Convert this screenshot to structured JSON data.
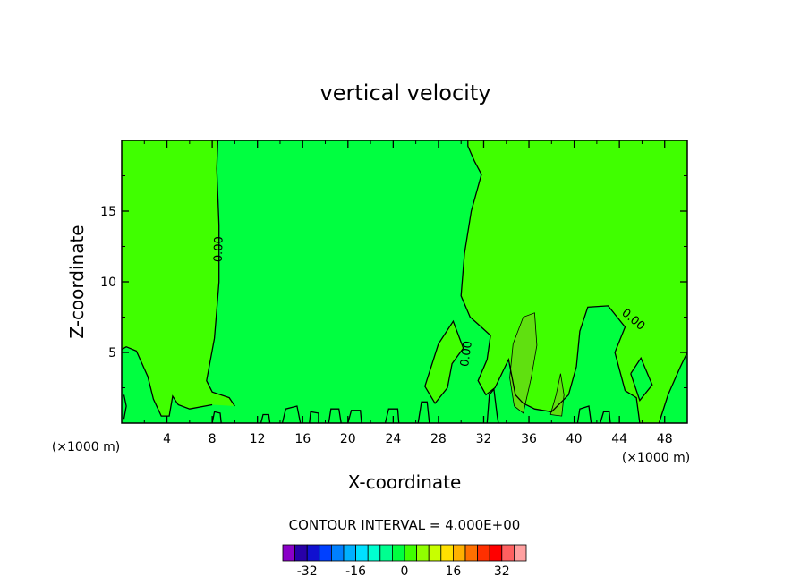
{
  "chart_data": {
    "type": "heatmap",
    "title": "vertical velocity",
    "xlabel": "X-coordinate",
    "ylabel": "Z-coordinate",
    "x_unit": "(×1000 m)",
    "y_unit": "(×1000 m)",
    "xlim": [
      0,
      50
    ],
    "ylim": [
      0,
      20
    ],
    "x_ticks": [
      4,
      8,
      12,
      16,
      20,
      24,
      28,
      32,
      36,
      40,
      44,
      48
    ],
    "y_ticks": [
      5,
      10,
      15
    ],
    "contour_labels": [
      {
        "text": "0.00",
        "x": 8.6,
        "y": 12.3,
        "rotate": -88
      },
      {
        "text": "0.00",
        "x": 30.5,
        "y": 4.9,
        "rotate": -82
      },
      {
        "text": "0.00",
        "x": 45.2,
        "y": 7.3,
        "rotate": 40
      }
    ],
    "contour_interval_text": "CONTOUR INTERVAL = 4.000E+00",
    "colorbar": {
      "colors": [
        "#8a00c8",
        "#2800a8",
        "#1010d0",
        "#0040ff",
        "#0080ff",
        "#00b0ff",
        "#00e0ff",
        "#00ffd0",
        "#00ff90",
        "#00ff40",
        "#40ff00",
        "#90ff00",
        "#c8ff00",
        "#ffe000",
        "#ffb000",
        "#ff7000",
        "#ff3000",
        "#ff0000",
        "#ff6060",
        "#ffa0a0"
      ],
      "labels": [
        {
          "text": "-32",
          "index": 2
        },
        {
          "text": "-16",
          "index": 6
        },
        {
          "text": "0",
          "index": 10
        },
        {
          "text": "16",
          "index": 14
        },
        {
          "text": "32",
          "index": 18
        }
      ]
    },
    "colors": {
      "near_zero_positive": "#40ff00",
      "near_zero_negative": "#00ff40",
      "weak_updraft": "#60e010"
    },
    "regions": [
      {
        "name": "updraft-left",
        "value": 2,
        "pts": [
          [
            0,
            20
          ],
          [
            8.5,
            20
          ],
          [
            8.4,
            18
          ],
          [
            8.6,
            14
          ],
          [
            8.6,
            10
          ],
          [
            8.4,
            8
          ],
          [
            8.2,
            6
          ],
          [
            7.5,
            3
          ],
          [
            8,
            2.2
          ],
          [
            9.5,
            1.8
          ],
          [
            10,
            1.2
          ],
          [
            8,
            1.3
          ],
          [
            6,
            1
          ],
          [
            5,
            1.3
          ],
          [
            4.5,
            1.9
          ],
          [
            4.2,
            0.5
          ],
          [
            3.5,
            0.5
          ],
          [
            2.8,
            1.7
          ],
          [
            2.3,
            3.3
          ],
          [
            1.3,
            5.1
          ],
          [
            0.4,
            5.4
          ],
          [
            0,
            5.2
          ]
        ]
      },
      {
        "name": "updraft-right",
        "value": 2,
        "pts": [
          [
            30.6,
            20
          ],
          [
            50,
            20
          ],
          [
            50,
            5
          ],
          [
            49.4,
            4
          ],
          [
            48.3,
            2
          ],
          [
            47.5,
            0
          ],
          [
            45.8,
            0
          ],
          [
            45.5,
            1.8
          ],
          [
            44.5,
            2.3
          ],
          [
            43.6,
            5
          ],
          [
            44.5,
            6.8
          ],
          [
            43,
            8.3
          ],
          [
            41.2,
            8.2
          ],
          [
            40.5,
            6.5
          ],
          [
            40.2,
            4
          ],
          [
            39.5,
            2
          ],
          [
            38,
            0.8
          ],
          [
            36.5,
            1
          ],
          [
            35.5,
            1.4
          ],
          [
            34.8,
            2
          ],
          [
            34.2,
            4.5
          ],
          [
            33,
            2.5
          ],
          [
            32.2,
            2
          ],
          [
            31.5,
            3
          ],
          [
            32.3,
            4.5
          ],
          [
            32.6,
            6.2
          ],
          [
            31.5,
            7
          ],
          [
            30.8,
            7.5
          ],
          [
            30,
            9
          ],
          [
            30.3,
            12
          ],
          [
            30.9,
            15
          ],
          [
            31.8,
            17.6
          ],
          [
            31.2,
            18.5
          ],
          [
            30.6,
            19.6
          ]
        ]
      },
      {
        "name": "updraft-center",
        "value": 2,
        "pts": [
          [
            28,
            5.6
          ],
          [
            29.3,
            7.2
          ],
          [
            30.2,
            5.3
          ],
          [
            29.2,
            4.2
          ],
          [
            28.8,
            2.5
          ],
          [
            27.7,
            1.4
          ],
          [
            26.8,
            2.6
          ]
        ]
      },
      {
        "name": "downdraft-blob-right",
        "value": -2,
        "pts": [
          [
            45,
            3.5
          ],
          [
            45.9,
            4.6
          ],
          [
            46.9,
            2.7
          ],
          [
            45.8,
            1.6
          ]
        ]
      }
    ],
    "updraft_cores": [
      {
        "name": "core-34",
        "value": 4,
        "pts": [
          [
            34.6,
            5.6
          ],
          [
            35.5,
            7.5
          ],
          [
            36.5,
            7.8
          ],
          [
            36.7,
            5.5
          ],
          [
            36.2,
            3.2
          ],
          [
            35.5,
            0.7
          ],
          [
            34.7,
            1.2
          ],
          [
            34.3,
            3.2
          ]
        ]
      },
      {
        "name": "core-38",
        "value": 4,
        "pts": [
          [
            37.9,
            0.6
          ],
          [
            38.4,
            2
          ],
          [
            38.8,
            3.5
          ],
          [
            39.1,
            2
          ],
          [
            38.9,
            0.5
          ]
        ]
      }
    ],
    "zero_contours": [
      {
        "pts": [
          [
            8.5,
            20
          ],
          [
            8.4,
            18
          ],
          [
            8.6,
            14
          ],
          [
            8.6,
            10
          ],
          [
            8.4,
            8
          ],
          [
            8.2,
            6
          ],
          [
            7.5,
            3
          ],
          [
            8,
            2.2
          ],
          [
            9.5,
            1.8
          ],
          [
            10,
            1.2
          ]
        ]
      },
      {
        "pts": [
          [
            0,
            5.2
          ],
          [
            0.4,
            5.4
          ],
          [
            1.3,
            5.1
          ],
          [
            2.3,
            3.3
          ],
          [
            2.8,
            1.7
          ],
          [
            3.5,
            0.5
          ],
          [
            4.2,
            0.5
          ],
          [
            4.5,
            1.9
          ],
          [
            5,
            1.3
          ],
          [
            6,
            1
          ],
          [
            8,
            1.3
          ]
        ]
      },
      {
        "pts": [
          [
            30.6,
            20
          ],
          [
            30.6,
            19.6
          ],
          [
            31.2,
            18.5
          ],
          [
            31.8,
            17.6
          ],
          [
            30.9,
            15
          ],
          [
            30.3,
            12
          ],
          [
            30,
            9
          ],
          [
            30.8,
            7.5
          ],
          [
            31.5,
            7
          ],
          [
            32.6,
            6.2
          ],
          [
            32.3,
            4.5
          ],
          [
            31.5,
            3
          ],
          [
            32.2,
            2
          ],
          [
            33,
            2.5
          ],
          [
            34.2,
            4.5
          ],
          [
            34.8,
            2
          ],
          [
            35.5,
            1.4
          ],
          [
            36.5,
            1
          ],
          [
            38,
            0.8
          ],
          [
            39.5,
            2
          ],
          [
            40.2,
            4
          ],
          [
            40.5,
            6.5
          ],
          [
            41.2,
            8.2
          ],
          [
            43,
            8.3
          ],
          [
            44.5,
            6.8
          ],
          [
            43.6,
            5
          ],
          [
            44.5,
            2.3
          ],
          [
            45.5,
            1.8
          ],
          [
            45.8,
            0
          ]
        ]
      },
      {
        "pts": [
          [
            50,
            5
          ],
          [
            49.4,
            4
          ],
          [
            48.3,
            2
          ],
          [
            47.5,
            0
          ]
        ]
      },
      {
        "pts": [
          [
            28,
            5.6
          ],
          [
            29.3,
            7.2
          ],
          [
            30.2,
            5.3
          ],
          [
            29.2,
            4.2
          ],
          [
            28.8,
            2.5
          ],
          [
            27.7,
            1.4
          ],
          [
            26.8,
            2.6
          ],
          [
            28,
            5.6
          ]
        ]
      },
      {
        "pts": [
          [
            45,
            3.5
          ],
          [
            45.9,
            4.6
          ],
          [
            46.9,
            2.7
          ],
          [
            45.8,
            1.6
          ],
          [
            45,
            3.5
          ]
        ]
      },
      {
        "pts": [
          [
            0.2,
            2
          ],
          [
            0.4,
            1.2
          ],
          [
            0.2,
            0.3
          ]
        ]
      },
      {
        "pts": [
          [
            14.2,
            0
          ],
          [
            14.5,
            1
          ],
          [
            15.5,
            1.2
          ],
          [
            15.8,
            0
          ]
        ]
      },
      {
        "pts": [
          [
            16.6,
            0
          ],
          [
            16.7,
            0.8
          ],
          [
            17.4,
            0.7
          ],
          [
            17.4,
            0
          ]
        ]
      },
      {
        "pts": [
          [
            18.3,
            0
          ],
          [
            18.5,
            1
          ],
          [
            19.2,
            1
          ],
          [
            19.4,
            0
          ]
        ]
      },
      {
        "pts": [
          [
            20,
            0
          ],
          [
            20.3,
            0.9
          ],
          [
            21.1,
            0.9
          ],
          [
            21.2,
            0
          ]
        ]
      },
      {
        "pts": [
          [
            23.3,
            0
          ],
          [
            23.6,
            1
          ],
          [
            24.4,
            1
          ],
          [
            24.5,
            0
          ]
        ]
      },
      {
        "pts": [
          [
            12.3,
            0
          ],
          [
            12.5,
            0.6
          ],
          [
            13,
            0.6
          ],
          [
            13.1,
            0
          ]
        ]
      },
      {
        "pts": [
          [
            8,
            0
          ],
          [
            8.2,
            0.8
          ],
          [
            8.7,
            0.7
          ],
          [
            8.8,
            0
          ]
        ]
      },
      {
        "pts": [
          [
            26.2,
            0
          ],
          [
            26.5,
            1.5
          ],
          [
            27,
            1.5
          ],
          [
            27.2,
            0
          ]
        ]
      },
      {
        "pts": [
          [
            40.3,
            0
          ],
          [
            40.5,
            1
          ],
          [
            41.3,
            1.2
          ],
          [
            41.5,
            0
          ]
        ]
      },
      {
        "pts": [
          [
            42.3,
            0
          ],
          [
            42.6,
            0.8
          ],
          [
            43.1,
            0.8
          ],
          [
            43.2,
            0
          ]
        ]
      },
      {
        "pts": [
          [
            32.3,
            0
          ],
          [
            32.5,
            2
          ],
          [
            32.9,
            2.4
          ],
          [
            33.2,
            0.5
          ],
          [
            33.3,
            0
          ]
        ]
      }
    ],
    "updraft_core_outlines": [
      {
        "pts": [
          [
            34.6,
            5.6
          ],
          [
            35.5,
            7.5
          ],
          [
            36.5,
            7.8
          ],
          [
            36.7,
            5.5
          ],
          [
            36.2,
            3.2
          ],
          [
            35.5,
            0.7
          ],
          [
            34.7,
            1.2
          ],
          [
            34.3,
            3.2
          ],
          [
            34.6,
            5.6
          ]
        ]
      },
      {
        "pts": [
          [
            37.9,
            0.6
          ],
          [
            38.4,
            2
          ],
          [
            38.8,
            3.5
          ],
          [
            39.1,
            2
          ],
          [
            38.9,
            0.5
          ],
          [
            37.9,
            0.6
          ]
        ]
      }
    ]
  }
}
